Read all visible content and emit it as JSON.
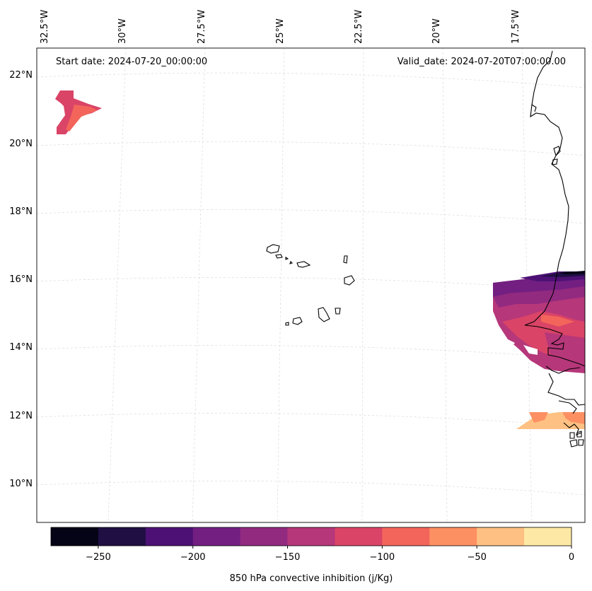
{
  "annotations": {
    "start_date": "Start date: 2024-07-20_00:00:00",
    "valid_date": "Valid_date: 2024-07-20T07:00:00.00"
  },
  "lon_labels": [
    "32.5°W",
    "30°W",
    "27.5°W",
    "25°W",
    "22.5°W",
    "20°W",
    "17.5°W"
  ],
  "lat_labels": [
    "22°N",
    "20°N",
    "18°N",
    "16°N",
    "14°N",
    "12°N",
    "10°N"
  ],
  "colorbar": {
    "label": "850 hPa convective inhibition (j/Kg)",
    "ticks": [
      "−250",
      "−200",
      "−150",
      "−100",
      "−50",
      "0"
    ],
    "tick_values": [
      -250,
      -200,
      -150,
      -100,
      -50,
      0
    ],
    "range": [
      -275,
      0
    ],
    "colors": [
      "#050416",
      "#1f0f42",
      "#4d1175",
      "#721f81",
      "#922a80",
      "#b6377a",
      "#da4467",
      "#f3655b",
      "#fc9063",
      "#fec183",
      "#fde9a5"
    ]
  },
  "map": {
    "coastline_color": "#000000",
    "gridline_color": "#d9d9d9",
    "features": [
      "cape-verde-islands",
      "west-africa-coastline"
    ]
  }
}
